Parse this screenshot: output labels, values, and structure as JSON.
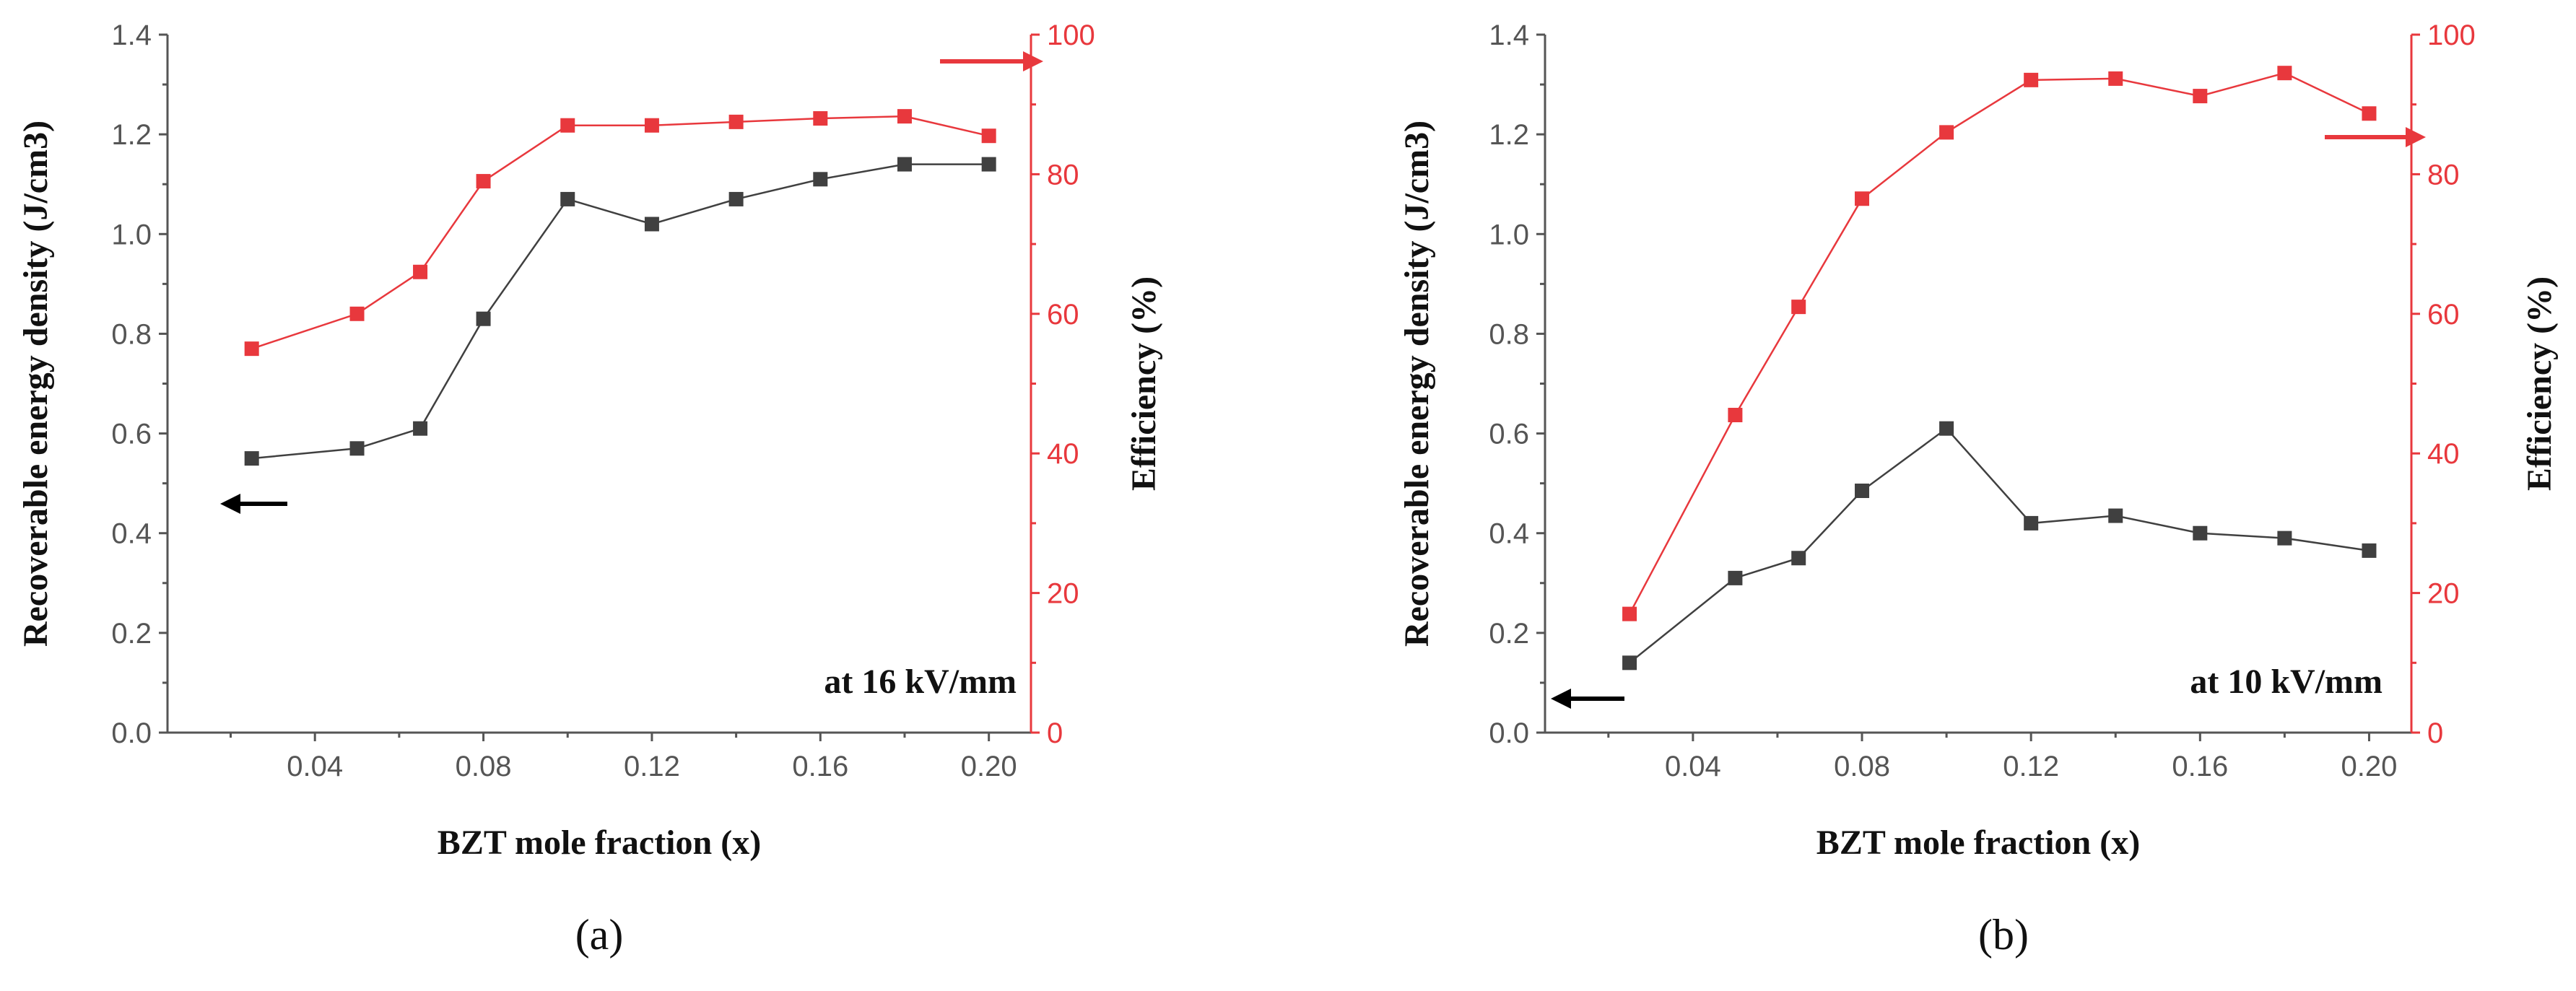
{
  "panels": [
    {
      "caption": "(a)",
      "annotation": "at 16 kV/mm",
      "arrows": {
        "left_axis": "left",
        "right_axis": "right"
      },
      "colors": {
        "energy": "#404040",
        "efficiency": "#e8383d",
        "right_axis": "#e8383d"
      },
      "chart_data": {
        "type": "line",
        "xlabel": "BZT mole fraction (x)",
        "ylabel": "Recoverable energy density (J/cm3)",
        "y2label": "Efficiency (%)",
        "xlim": [
          0.005,
          0.21
        ],
        "ylim": [
          0,
          1.4
        ],
        "y2lim": [
          0,
          100
        ],
        "xticks": [
          "0.04",
          "0.08",
          "0.12",
          "0.16",
          "0.20"
        ],
        "yticks": [
          "0.0",
          "0.2",
          "0.4",
          "0.6",
          "0.8",
          "1.0",
          "1.2",
          "1.4"
        ],
        "y2ticks": [
          "0",
          "20",
          "40",
          "60",
          "80",
          "100"
        ],
        "series": [
          {
            "name": "Recoverable energy density",
            "axis": "left",
            "x": [
              0.025,
              0.05,
              0.065,
              0.08,
              0.1,
              0.12,
              0.14,
              0.16,
              0.18,
              0.2
            ],
            "values": [
              0.55,
              0.57,
              0.61,
              0.83,
              1.07,
              1.02,
              1.07,
              1.11,
              1.14,
              1.14
            ]
          },
          {
            "name": "Efficiency",
            "axis": "right",
            "x": [
              0.025,
              0.05,
              0.065,
              0.08,
              0.1,
              0.12,
              0.14,
              0.16,
              0.18,
              0.2
            ],
            "values": [
              55,
              60,
              66,
              79,
              87,
              87,
              87.5,
              88,
              88.3,
              85.5
            ]
          }
        ]
      }
    },
    {
      "caption": "(b)",
      "annotation": "at 10 kV/mm",
      "arrows": {
        "left_axis": "left",
        "right_axis": "right"
      },
      "colors": {
        "energy": "#404040",
        "efficiency": "#e8383d",
        "right_axis": "#e8383d"
      },
      "chart_data": {
        "type": "line",
        "xlabel": "BZT mole fraction (x)",
        "ylabel": "Recoverable energy density (J/cm3)",
        "y2label": "Efficiency (%)",
        "xlim": [
          0.005,
          0.21
        ],
        "ylim": [
          0,
          1.4
        ],
        "y2lim": [
          0,
          100
        ],
        "xticks": [
          "0.04",
          "0.08",
          "0.12",
          "0.16",
          "0.20"
        ],
        "yticks": [
          "0.0",
          "0.2",
          "0.4",
          "0.6",
          "0.8",
          "1.0",
          "1.2",
          "1.4"
        ],
        "y2ticks": [
          "0",
          "20",
          "40",
          "60",
          "80",
          "100"
        ],
        "series": [
          {
            "name": "Recoverable energy density",
            "axis": "left",
            "x": [
              0.025,
              0.05,
              0.065,
              0.08,
              0.1,
              0.12,
              0.14,
              0.16,
              0.18,
              0.2
            ],
            "values": [
              0.14,
              0.31,
              0.35,
              0.485,
              0.61,
              0.42,
              0.435,
              0.4,
              0.39,
              0.365
            ]
          },
          {
            "name": "Efficiency",
            "axis": "right",
            "x": [
              0.025,
              0.05,
              0.065,
              0.08,
              0.1,
              0.12,
              0.14,
              0.16,
              0.18,
              0.2
            ],
            "values": [
              17,
              45.5,
              61,
              76.5,
              86,
              93.5,
              93.7,
              91.2,
              94.5,
              88.7
            ]
          }
        ]
      }
    }
  ]
}
